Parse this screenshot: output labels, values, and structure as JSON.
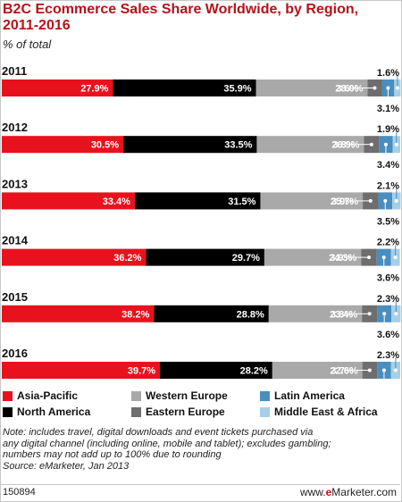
{
  "chart_data": {
    "type": "bar",
    "orientation": "horizontal",
    "stacked": true,
    "title": "B2C Ecommerce Sales Share Worldwide, by Region, 2011-2016",
    "subtitle": "% of total",
    "categories": [
      "2011",
      "2012",
      "2013",
      "2014",
      "2015",
      "2016"
    ],
    "series": [
      {
        "name": "Asia-Pacific",
        "color": "#e8121e",
        "values": [
          27.9,
          30.5,
          33.4,
          36.2,
          38.2,
          39.7
        ]
      },
      {
        "name": "North America",
        "color": "#000000",
        "values": [
          35.9,
          33.5,
          31.5,
          29.7,
          28.8,
          28.2
        ]
      },
      {
        "name": "Western Europe",
        "color": "#a9a9a9",
        "values": [
          28.0,
          26.9,
          25.7,
          24.3,
          23.4,
          22.6
        ]
      },
      {
        "name": "Eastern Europe",
        "color": "#6e6e6e",
        "values": [
          3.6,
          3.8,
          3.9,
          3.9,
          3.8,
          3.7
        ]
      },
      {
        "name": "Latin America",
        "color": "#4a8dbf",
        "values": [
          3.1,
          3.4,
          3.5,
          3.6,
          3.6,
          3.5
        ]
      },
      {
        "name": "Middle East & Africa",
        "color": "#a5cfe6",
        "values": [
          1.6,
          1.9,
          2.1,
          2.2,
          2.3,
          2.3
        ]
      }
    ],
    "value_labels": [
      [
        "27.9%",
        "35.9%",
        "28.0%",
        "3.6%",
        "3.1%",
        "1.6%"
      ],
      [
        "30.5%",
        "33.5%",
        "26.9%",
        "3.8%",
        "3.4%",
        "1.9%"
      ],
      [
        "33.4%",
        "31.5%",
        "25.7%",
        "3.9%",
        "3.5%",
        "2.1%"
      ],
      [
        "36.2%",
        "29.7%",
        "24.3%",
        "3.9%",
        "3.6%",
        "2.2%"
      ],
      [
        "38.2%",
        "28.8%",
        "23.4%",
        "3.8%",
        "3.6%",
        "2.3%"
      ],
      [
        "39.7%",
        "28.2%",
        "22.6%",
        "3.7%",
        "3.5%",
        "2.3%"
      ]
    ],
    "xlim": [
      0,
      100
    ],
    "legend_position": "bottom",
    "grid": false
  },
  "note": [
    "Note: includes travel, digital downloads and event tickets purchased via",
    "any digital channel (including online, mobile and tablet); excludes gambling;",
    "numbers may not add up to 100% due to rounding",
    "Source: eMarketer, Jan 2013"
  ],
  "footer": {
    "chart_id": "150894",
    "brand_prefix": "www.",
    "brand_e": "e",
    "brand_name": "Marketer",
    "brand_suffix": ".com"
  }
}
